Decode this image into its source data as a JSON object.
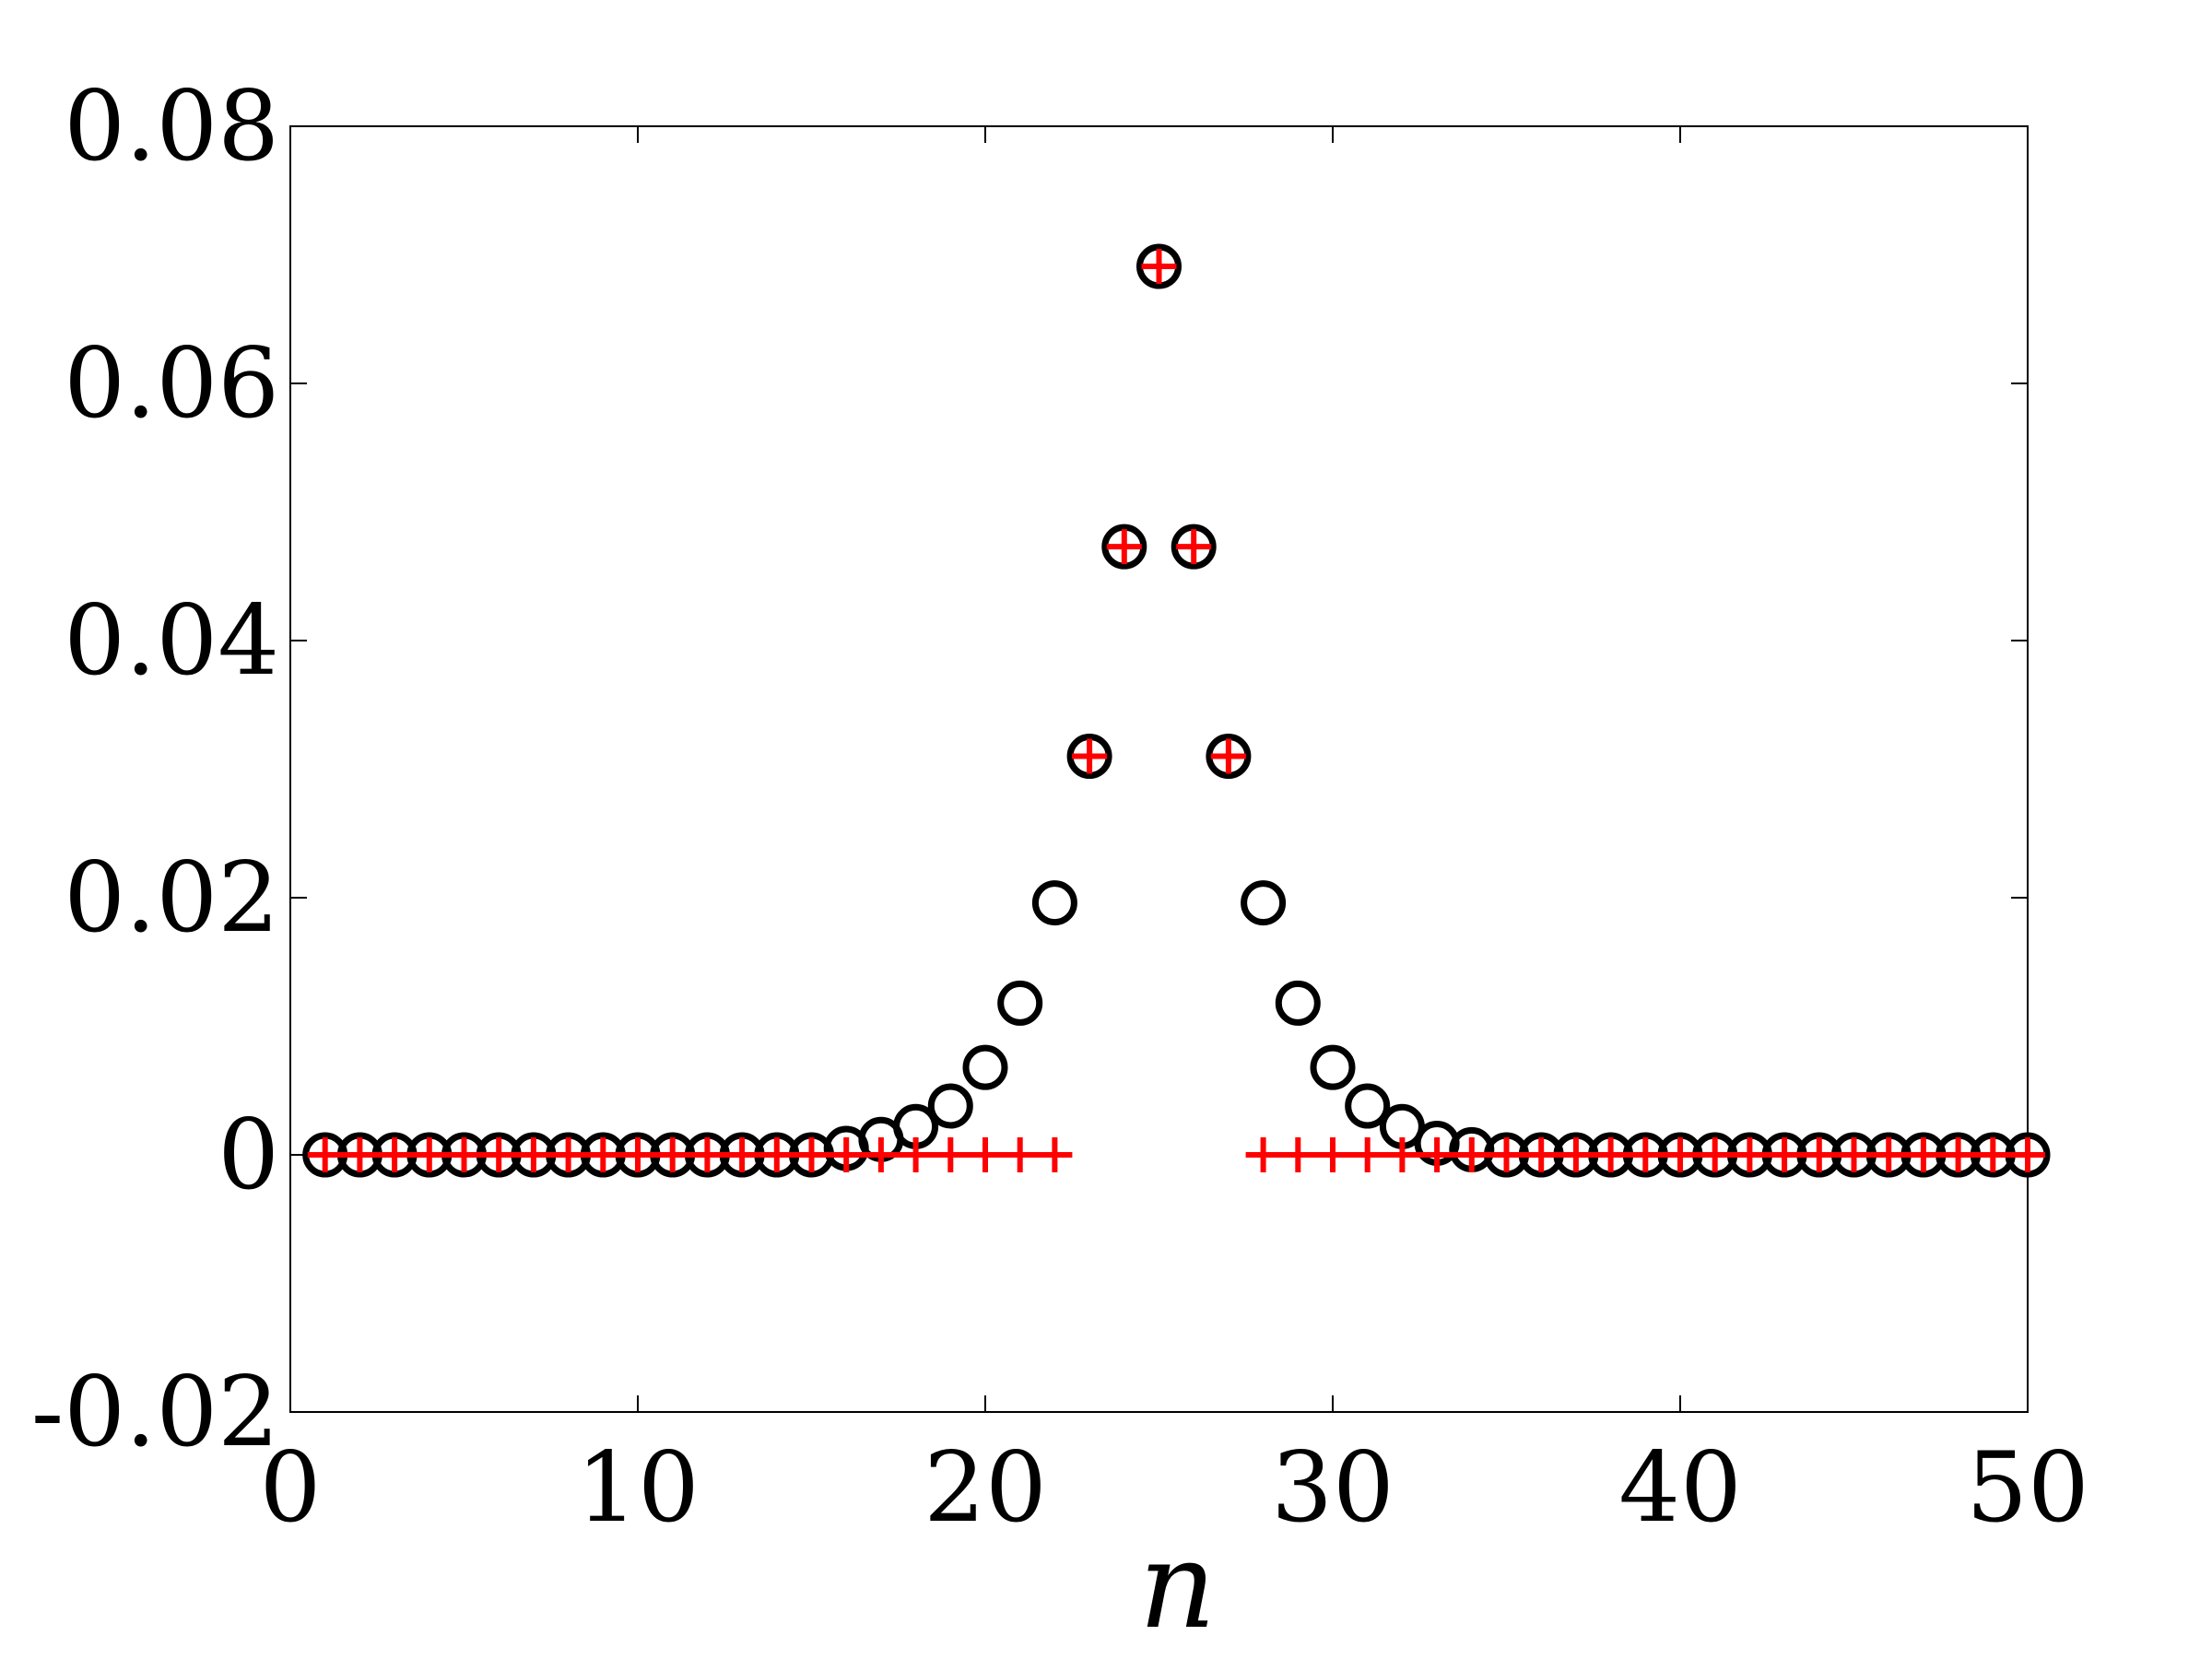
{
  "chart_data": {
    "type": "scatter",
    "title": "",
    "xlabel": "n",
    "ylabel": "",
    "xlim": [
      0,
      50
    ],
    "ylim": [
      -0.02,
      0.08
    ],
    "x_ticks": [
      0,
      10,
      20,
      30,
      40,
      50
    ],
    "x_tick_labels": [
      "0",
      "10",
      "20",
      "30",
      "40",
      "50"
    ],
    "y_ticks": [
      -0.02,
      0,
      0.02,
      0.04,
      0.06,
      0.08
    ],
    "y_tick_labels": [
      "-0.02",
      "0",
      "0.02",
      "0.04",
      "0.06",
      "0.08"
    ],
    "grid": false,
    "legend": "none",
    "series": [
      {
        "marker": "circle",
        "color": "#000000",
        "x": [
          1,
          2,
          3,
          4,
          5,
          6,
          7,
          8,
          9,
          10,
          11,
          12,
          13,
          14,
          15,
          16,
          17,
          18,
          19,
          20,
          21,
          22,
          23,
          24,
          25,
          26,
          27,
          28,
          29,
          30,
          31,
          32,
          33,
          34,
          35,
          36,
          37,
          38,
          39,
          40,
          41,
          42,
          43,
          44,
          45,
          46,
          47,
          48,
          49,
          50
        ],
        "y": [
          0,
          0,
          0,
          0,
          0,
          0,
          0,
          0,
          0,
          0,
          0,
          0,
          0,
          0,
          0,
          0.0005,
          0.0012,
          0.0022,
          0.0038,
          0.0068,
          0.0118,
          0.0196,
          0.031,
          0.0473,
          0.0691,
          0.0473,
          0.031,
          0.0196,
          0.0118,
          0.0068,
          0.0038,
          0.0022,
          0.0009,
          0.0004,
          0,
          0,
          0,
          0,
          0,
          0,
          0,
          0,
          0,
          0,
          0,
          0,
          0,
          0,
          0,
          0
        ]
      },
      {
        "marker": "plus",
        "color": "#ff0000",
        "x": [
          1,
          2,
          3,
          4,
          5,
          6,
          7,
          8,
          9,
          10,
          11,
          12,
          13,
          14,
          15,
          16,
          17,
          18,
          19,
          20,
          21,
          22,
          23,
          24,
          25,
          26,
          27,
          28,
          29,
          30,
          31,
          32,
          33,
          34,
          35,
          36,
          37,
          38,
          39,
          40,
          41,
          42,
          43,
          44,
          45,
          46,
          47,
          48,
          49,
          50
        ],
        "y": [
          0,
          0,
          0,
          0,
          0,
          0,
          0,
          0,
          0,
          0,
          0,
          0,
          0,
          0,
          0,
          0,
          0,
          0,
          0,
          0,
          0,
          0,
          0.031,
          0.0473,
          0.0691,
          0.0473,
          0.031,
          0,
          0,
          0,
          0,
          0,
          0,
          0,
          0,
          0,
          0,
          0,
          0,
          0,
          0,
          0,
          0,
          0,
          0,
          0,
          0,
          0,
          0,
          0
        ]
      }
    ]
  }
}
